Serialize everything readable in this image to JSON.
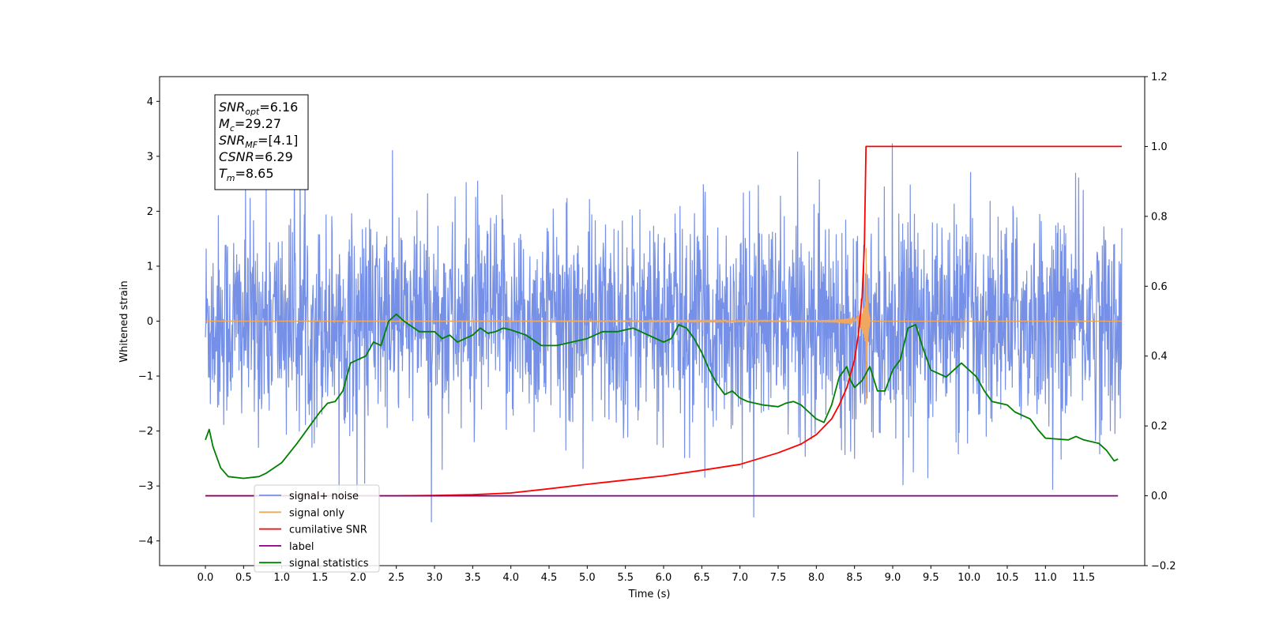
{
  "chart_data": {
    "type": "line",
    "xlabel": "Time (s)",
    "ylabel": "Whitened strain",
    "xlim": [
      -0.6,
      12.3
    ],
    "ylim": [
      -4.45,
      4.45
    ],
    "y2lim": [
      -0.2,
      1.2
    ],
    "x_ticks": [
      "0.0",
      "0.5",
      "1.0",
      "1.5",
      "2.0",
      "2.5",
      "3.0",
      "3.5",
      "4.0",
      "4.5",
      "5.0",
      "5.5",
      "6.0",
      "6.5",
      "7.0",
      "7.5",
      "8.0",
      "8.5",
      "9.0",
      "9.5",
      "10.0",
      "10.5",
      "11.0",
      "11.5"
    ],
    "y_ticks": [
      "4",
      "3",
      "2",
      "1",
      "0",
      "−1",
      "−2",
      "−3",
      "−4"
    ],
    "y2_ticks": [
      "1.2",
      "1.0",
      "0.8",
      "0.6",
      "0.4",
      "0.2",
      "0.0",
      "−0.2"
    ],
    "annotation": {
      "lines": [
        {
          "name": "SNR",
          "sub": "opt",
          "value": "=6.16"
        },
        {
          "name": "M",
          "sub": "c",
          "value": "=29.27"
        },
        {
          "name": "SNR",
          "sub": "MF",
          "value": "=[4.1]"
        },
        {
          "name": "CSNR",
          "sub": "",
          "value": "=6.29"
        },
        {
          "name": "T",
          "sub": "m",
          "value": "=8.65"
        }
      ]
    },
    "series": [
      {
        "name": "signal+ noise",
        "axis": "left",
        "color": "#7590e6",
        "x_range": [
          0.0,
          12.0
        ],
        "envelope_sigma": 1.0,
        "max": 4.1,
        "min": -4.05
      },
      {
        "name": "signal only",
        "axis": "left",
        "color": "#f0a860",
        "chirp_merger_time": 8.65,
        "peak_amplitude": 1.5
      },
      {
        "name": "cumilative SNR",
        "axis": "right",
        "color": "#ff0000",
        "points": [
          [
            0,
            0
          ],
          [
            2.5,
            0
          ],
          [
            3,
            0.001
          ],
          [
            3.5,
            0.003
          ],
          [
            4,
            0.008
          ],
          [
            4.5,
            0.02
          ],
          [
            5,
            0.033
          ],
          [
            5.5,
            0.045
          ],
          [
            6,
            0.057
          ],
          [
            6.5,
            0.073
          ],
          [
            7,
            0.09
          ],
          [
            7.5,
            0.123
          ],
          [
            7.8,
            0.148
          ],
          [
            8,
            0.175
          ],
          [
            8.2,
            0.22
          ],
          [
            8.3,
            0.26
          ],
          [
            8.4,
            0.31
          ],
          [
            8.5,
            0.39
          ],
          [
            8.55,
            0.46
          ],
          [
            8.6,
            0.57
          ],
          [
            8.63,
            0.72
          ],
          [
            8.65,
            1.0
          ],
          [
            12,
            1.0
          ]
        ]
      },
      {
        "name": "label",
        "axis": "right",
        "color": "#800080",
        "points": [
          [
            0,
            0
          ],
          [
            11.95,
            0
          ]
        ]
      },
      {
        "name": "signal statistics",
        "axis": "right",
        "color": "#008000",
        "points": [
          [
            0,
            0.16
          ],
          [
            0.05,
            0.19
          ],
          [
            0.1,
            0.14
          ],
          [
            0.2,
            0.08
          ],
          [
            0.3,
            0.055
          ],
          [
            0.5,
            0.05
          ],
          [
            0.7,
            0.055
          ],
          [
            0.8,
            0.065
          ],
          [
            1,
            0.095
          ],
          [
            1.2,
            0.15
          ],
          [
            1.4,
            0.21
          ],
          [
            1.5,
            0.24
          ],
          [
            1.6,
            0.265
          ],
          [
            1.7,
            0.27
          ],
          [
            1.8,
            0.3
          ],
          [
            1.9,
            0.38
          ],
          [
            2.0,
            0.39
          ],
          [
            2.1,
            0.4
          ],
          [
            2.2,
            0.44
          ],
          [
            2.3,
            0.43
          ],
          [
            2.4,
            0.5
          ],
          [
            2.5,
            0.52
          ],
          [
            2.6,
            0.5
          ],
          [
            2.8,
            0.47
          ],
          [
            3.0,
            0.47
          ],
          [
            3.1,
            0.45
          ],
          [
            3.2,
            0.46
          ],
          [
            3.3,
            0.44
          ],
          [
            3.4,
            0.45
          ],
          [
            3.5,
            0.46
          ],
          [
            3.6,
            0.48
          ],
          [
            3.7,
            0.465
          ],
          [
            3.8,
            0.47
          ],
          [
            3.9,
            0.48
          ],
          [
            4.0,
            0.475
          ],
          [
            4.2,
            0.46
          ],
          [
            4.4,
            0.43
          ],
          [
            4.6,
            0.43
          ],
          [
            4.8,
            0.44
          ],
          [
            5.0,
            0.45
          ],
          [
            5.2,
            0.47
          ],
          [
            5.4,
            0.47
          ],
          [
            5.6,
            0.48
          ],
          [
            5.8,
            0.46
          ],
          [
            6.0,
            0.44
          ],
          [
            6.1,
            0.45
          ],
          [
            6.2,
            0.49
          ],
          [
            6.3,
            0.48
          ],
          [
            6.4,
            0.45
          ],
          [
            6.5,
            0.41
          ],
          [
            6.6,
            0.36
          ],
          [
            6.7,
            0.32
          ],
          [
            6.8,
            0.29
          ],
          [
            6.9,
            0.3
          ],
          [
            7.0,
            0.28
          ],
          [
            7.1,
            0.27
          ],
          [
            7.3,
            0.26
          ],
          [
            7.5,
            0.255
          ],
          [
            7.6,
            0.265
          ],
          [
            7.7,
            0.27
          ],
          [
            7.8,
            0.26
          ],
          [
            7.9,
            0.24
          ],
          [
            8.0,
            0.22
          ],
          [
            8.1,
            0.21
          ],
          [
            8.2,
            0.26
          ],
          [
            8.3,
            0.34
          ],
          [
            8.4,
            0.37
          ],
          [
            8.45,
            0.33
          ],
          [
            8.5,
            0.31
          ],
          [
            8.6,
            0.33
          ],
          [
            8.7,
            0.37
          ],
          [
            8.8,
            0.3
          ],
          [
            8.9,
            0.3
          ],
          [
            9.0,
            0.36
          ],
          [
            9.1,
            0.39
          ],
          [
            9.2,
            0.48
          ],
          [
            9.3,
            0.49
          ],
          [
            9.4,
            0.42
          ],
          [
            9.5,
            0.36
          ],
          [
            9.6,
            0.35
          ],
          [
            9.7,
            0.34
          ],
          [
            9.8,
            0.36
          ],
          [
            9.9,
            0.38
          ],
          [
            10.0,
            0.36
          ],
          [
            10.1,
            0.34
          ],
          [
            10.2,
            0.3
          ],
          [
            10.3,
            0.27
          ],
          [
            10.5,
            0.26
          ],
          [
            10.6,
            0.24
          ],
          [
            10.8,
            0.22
          ],
          [
            10.9,
            0.19
          ],
          [
            11.0,
            0.165
          ],
          [
            11.3,
            0.16
          ],
          [
            11.4,
            0.17
          ],
          [
            11.5,
            0.16
          ],
          [
            11.7,
            0.15
          ],
          [
            11.8,
            0.13
          ],
          [
            11.9,
            0.1
          ],
          [
            11.95,
            0.105
          ]
        ]
      }
    ],
    "legend": {
      "placement": "bottom-left",
      "entries": [
        "signal+ noise",
        "signal only",
        "cumilative SNR",
        "label",
        "signal statistics"
      ]
    }
  }
}
